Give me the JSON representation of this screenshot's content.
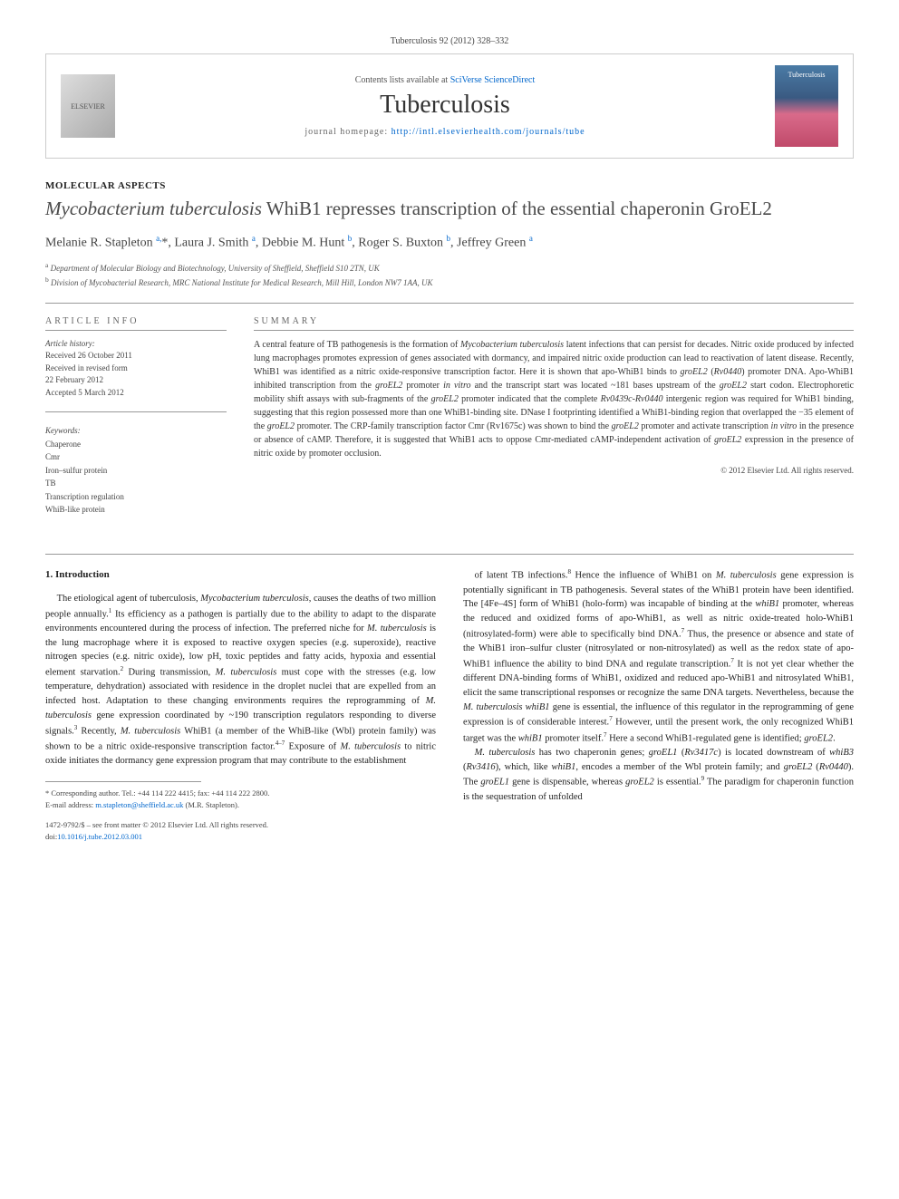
{
  "citation": "Tuberculosis 92 (2012) 328–332",
  "header": {
    "contents_prefix": "Contents lists available at ",
    "contents_link": "SciVerse ScienceDirect",
    "journal": "Tuberculosis",
    "homepage_prefix": "journal homepage: ",
    "homepage_url": "http://intl.elsevierhealth.com/journals/tube",
    "cover_label": "Tuberculosis",
    "elsevier": "ELSEVIER"
  },
  "article": {
    "section": "MOLECULAR ASPECTS",
    "title_html": "<em>Mycobacterium tuberculosis</em> WhiB1 represses transcription of the essential chaperonin GroEL2",
    "authors_html": "Melanie R. Stapleton <sup>a,</sup>*, Laura J. Smith <sup>a</sup>, Debbie M. Hunt <sup>b</sup>, Roger S. Buxton <sup>b</sup>, Jeffrey Green <sup>a</sup>",
    "affiliations": [
      {
        "sup": "a",
        "text": "Department of Molecular Biology and Biotechnology, University of Sheffield, Sheffield S10 2TN, UK"
      },
      {
        "sup": "b",
        "text": "Division of Mycobacterial Research, MRC National Institute for Medical Research, Mill Hill, London NW7 1AA, UK"
      }
    ]
  },
  "info": {
    "heading": "ARTICLE INFO",
    "history_title": "Article history:",
    "history": [
      "Received 26 October 2011",
      "Received in revised form",
      "22 February 2012",
      "Accepted 5 March 2012"
    ],
    "keywords_title": "Keywords:",
    "keywords": [
      "Chaperone",
      "Cmr",
      "Iron–sulfur protein",
      "TB",
      "Transcription regulation",
      "WhiB-like protein"
    ]
  },
  "summary": {
    "heading": "SUMMARY",
    "text_html": "A central feature of TB pathogenesis is the formation of <em>Mycobacterium tuberculosis</em> latent infections that can persist for decades. Nitric oxide produced by infected lung macrophages promotes expression of genes associated with dormancy, and impaired nitric oxide production can lead to reactivation of latent disease. Recently, WhiB1 was identified as a nitric oxide-responsive transcription factor. Here it is shown that apo-WhiB1 binds to <em>groEL2</em> (<em>Rv0440</em>) promoter DNA. Apo-WhiB1 inhibited transcription from the <em>groEL2</em> promoter <em>in vitro</em> and the transcript start was located ~181 bases upstream of the <em>groEL2</em> start codon. Electrophoretic mobility shift assays with sub-fragments of the <em>groEL2</em> promoter indicated that the complete <em>Rv0439c-Rv0440</em> intergenic region was required for WhiB1 binding, suggesting that this region possessed more than one WhiB1-binding site. DNase I footprinting identified a WhiB1-binding region that overlapped the −35 element of the <em>groEL2</em> promoter. The CRP-family transcription factor Cmr (Rv1675c) was shown to bind the <em>groEL2</em> promoter and activate transcription <em>in vitro</em> in the presence or absence of cAMP. Therefore, it is suggested that WhiB1 acts to oppose Cmr-mediated cAMP-independent activation of <em>groEL2</em> expression in the presence of nitric oxide by promoter occlusion.",
    "copyright": "© 2012 Elsevier Ltd. All rights reserved."
  },
  "body": {
    "section1_heading": "1. Introduction",
    "col1_html": "The etiological agent of tuberculosis, <em>Mycobacterium tuberculosis</em>, causes the deaths of two million people annually.<sup>1</sup> Its efficiency as a pathogen is partially due to the ability to adapt to the disparate environments encountered during the process of infection. The preferred niche for <em>M. tuberculosis</em> is the lung macrophage where it is exposed to reactive oxygen species (e.g. superoxide), reactive nitrogen species (e.g. nitric oxide), low pH, toxic peptides and fatty acids, hypoxia and essential element starvation.<sup>2</sup> During transmission, <em>M. tuberculosis</em> must cope with the stresses (e.g. low temperature, dehydration) associated with residence in the droplet nuclei that are expelled from an infected host. Adaptation to these changing environments requires the reprogramming of <em>M. tuberculosis</em> gene expression coordinated by ~190 transcription regulators responding to diverse signals.<sup>3</sup> Recently, <em>M. tuberculosis</em> WhiB1 (a member of the WhiB-like (Wbl) protein family) was shown to be a nitric oxide-responsive transcription factor.<sup>4–7</sup> Exposure of <em>M. tuberculosis</em> to nitric oxide initiates the dormancy gene expression program that may contribute to the establishment",
    "col2_p1_html": "of latent TB infections.<sup>8</sup> Hence the influence of WhiB1 on <em>M. tuberculosis</em> gene expression is potentially significant in TB pathogenesis. Several states of the WhiB1 protein have been identified. The [4Fe–4S] form of WhiB1 (holo-form) was incapable of binding at the <em>whiB1</em> promoter, whereas the reduced and oxidized forms of apo-WhiB1, as well as nitric oxide-treated holo-WhiB1 (nitrosylated-form) were able to specifically bind DNA.<sup>7</sup> Thus, the presence or absence and state of the WhiB1 iron–sulfur cluster (nitrosylated or non-nitrosylated) as well as the redox state of apo-WhiB1 influence the ability to bind DNA and regulate transcription.<sup>7</sup> It is not yet clear whether the different DNA-binding forms of WhiB1, oxidized and reduced apo-WhiB1 and nitrosylated WhiB1, elicit the same transcriptional responses or recognize the same DNA targets. Nevertheless, because the <em>M. tuberculosis whiB1</em> gene is essential, the influence of this regulator in the reprogramming of gene expression is of considerable interest.<sup>7</sup> However, until the present work, the only recognized WhiB1 target was the <em>whiB1</em> promoter itself.<sup>7</sup> Here a second WhiB1-regulated gene is identified; <em>groEL2</em>.",
    "col2_p2_html": "<em>M. tuberculosis</em> has two chaperonin genes; <em>groEL1</em> (<em>Rv3417c</em>) is located downstream of <em>whiB3</em> (<em>Rv3416</em>), which, like <em>whiB1</em>, encodes a member of the Wbl protein family; and <em>groEL2</em> (<em>Rv0440</em>). The <em>groEL1</em> gene is dispensable, whereas <em>groEL2</em> is essential.<sup>9</sup> The paradigm for chaperonin function is the sequestration of unfolded"
  },
  "footnotes": {
    "corresponding": "* Corresponding author. Tel.: +44 114 222 4415; fax: +44 114 222 2800.",
    "email_label": "E-mail address: ",
    "email": "m.stapleton@sheffield.ac.uk",
    "email_suffix": " (M.R. Stapleton)."
  },
  "bottom": {
    "issn": "1472-9792/$ – see front matter © 2012 Elsevier Ltd. All rights reserved.",
    "doi_label": "doi:",
    "doi": "10.1016/j.tube.2012.03.001"
  }
}
